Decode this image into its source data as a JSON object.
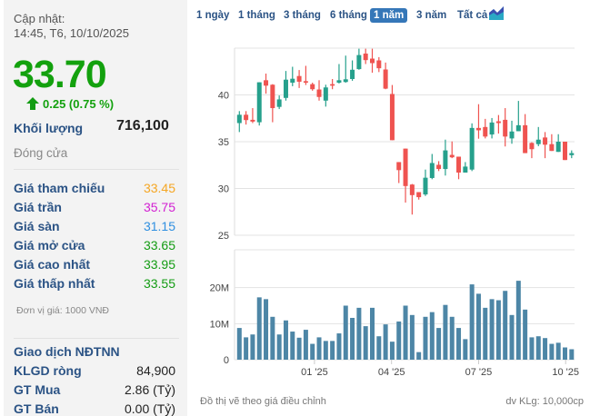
{
  "update": {
    "label": "Cập nhật:",
    "time": "14:45, T6, 10/10/2025"
  },
  "price": {
    "current": "33.70",
    "change": "0.25 (0.75 %)",
    "direction": "up"
  },
  "volume": {
    "label": "Khối lượng",
    "value": "716,100"
  },
  "status": "Đóng cửa",
  "stats": [
    {
      "label": "Giá tham chiếu",
      "value": "33.45",
      "color": "#f5a623"
    },
    {
      "label": "Giá trần",
      "value": "35.75",
      "color": "#d21fd2"
    },
    {
      "label": "Giá sàn",
      "value": "31.15",
      "color": "#2f8fe0"
    },
    {
      "label": "Giá mở cửa",
      "value": "33.65",
      "color": "#139c13"
    },
    {
      "label": "Giá cao nhất",
      "value": "33.95",
      "color": "#139c13"
    },
    {
      "label": "Giá thấp nhất",
      "value": "33.55",
      "color": "#139c13"
    }
  ],
  "unit_note": "Đơn vị giá: 1000 VNĐ",
  "foreign": {
    "title": "Giao dịch NĐTNN",
    "rows": [
      {
        "label": "KLGD ròng",
        "value": "84,900"
      },
      {
        "label": "GT Mua",
        "value": "2.86 (Tỷ)"
      },
      {
        "label": "GT Bán",
        "value": "0.00 (Tỷ)"
      }
    ]
  },
  "tabs": [
    {
      "label": "1 ngày"
    },
    {
      "label": "1 tháng"
    },
    {
      "label": "3 tháng"
    },
    {
      "label": "6 tháng"
    },
    {
      "label": "1 năm",
      "active": true
    },
    {
      "label": "3 năm"
    },
    {
      "label": "Tất cả"
    }
  ],
  "chart_icon": "area-chart-icon",
  "footer": {
    "left": "Đồ thị vẽ theo giá điều chỉnh",
    "right": "dv KLg: 10,000cp"
  },
  "colors": {
    "up": "#26a08c",
    "down": "#ef5350",
    "volume": "#4d86a6",
    "accent": "#3577b8"
  },
  "chart_data": {
    "type": "candlestick",
    "price_ylim": [
      25,
      45
    ],
    "price_ticks": [
      "25",
      "30",
      "35",
      "40"
    ],
    "price_tick_values": [
      25,
      30,
      35,
      40
    ],
    "volume_ylim": [
      0,
      30.5
    ],
    "volume_ticks": [
      "0",
      "10M",
      "20M"
    ],
    "volume_tick_values": [
      0,
      10,
      20
    ],
    "x_ticks": [
      {
        "label": "01 '25",
        "index": 11.3
      },
      {
        "label": "04 '25",
        "index": 22.9
      },
      {
        "label": "07 '25",
        "index": 36.0
      },
      {
        "label": "10 '25",
        "index": 49.1
      }
    ],
    "ohlc": [
      [
        36.99,
        38.27,
        36.03,
        37.88
      ],
      [
        37.88,
        38.27,
        36.83,
        37.31
      ],
      [
        37.34,
        38.59,
        36.99,
        37.15
      ],
      [
        37.08,
        41.35,
        36.73,
        41.35
      ],
      [
        41.57,
        42.28,
        40.13,
        40.99
      ],
      [
        41.09,
        41.15,
        37.08,
        38.59
      ],
      [
        38.72,
        39.94,
        38.49,
        39.52
      ],
      [
        39.68,
        42.56,
        39.39,
        41.63
      ],
      [
        41.31,
        43.01,
        40.93,
        41.73
      ],
      [
        42.02,
        42.66,
        40.74,
        41.41
      ],
      [
        41.47,
        43.11,
        41.06,
        41.31
      ],
      [
        41.15,
        41.31,
        40.45,
        40.61
      ],
      [
        40.58,
        41.57,
        39.39,
        39.78
      ],
      [
        39.39,
        41.09,
        38.75,
        40.8
      ],
      [
        41.15,
        41.7,
        40.61,
        40.99
      ],
      [
        41.31,
        43.3,
        41.22,
        41.57
      ],
      [
        41.38,
        44.2,
        41.31,
        41.67
      ],
      [
        41.7,
        43.69,
        41.51,
        42.69
      ],
      [
        42.76,
        44.94,
        42.69,
        44.26
      ],
      [
        44.42,
        44.94,
        43.3,
        43.72
      ],
      [
        43.88,
        44.94,
        42.37,
        43.4
      ],
      [
        43.69,
        44.04,
        42.44,
        42.85
      ],
      [
        42.72,
        43.46,
        40.61,
        40.67
      ],
      [
        40.1,
        41.06,
        35.16,
        35.16
      ],
      [
        32.82,
        32.82,
        30.58,
        31.96
      ],
      [
        34.26,
        34.26,
        28.49,
        30.26
      ],
      [
        30.42,
        30.48,
        27.21,
        29.29
      ],
      [
        29.61,
        29.61,
        28.81,
        29.07
      ],
      [
        29.36,
        32.02,
        29.2,
        31.15
      ],
      [
        31.12,
        33.69,
        30.99,
        32.72
      ],
      [
        32.53,
        32.92,
        31.86,
        32.08
      ],
      [
        32.08,
        35.22,
        31.38,
        34.07
      ],
      [
        33.59,
        35.03,
        33.24,
        33.33
      ],
      [
        33.4,
        33.4,
        30.99,
        31.7
      ],
      [
        31.7,
        32.82,
        31.7,
        32.34
      ],
      [
        32.02,
        36.96,
        31.86,
        36.47
      ],
      [
        36.47,
        39.01,
        35.32,
        36.22
      ],
      [
        36.57,
        37.44,
        35.35,
        35.55
      ],
      [
        35.77,
        37.53,
        35.35,
        37.05
      ],
      [
        37.18,
        37.85,
        35.87,
        36.99
      ],
      [
        37.34,
        38.59,
        34.49,
        35.55
      ],
      [
        35.35,
        37.24,
        34.78,
        36.09
      ],
      [
        36.12,
        39.36,
        36.12,
        36.76
      ],
      [
        36.76,
        37.95,
        33.78,
        33.78
      ],
      [
        34.87,
        34.94,
        33.24,
        34.2
      ],
      [
        34.74,
        36.57,
        34.52,
        35.22
      ],
      [
        35.45,
        36.03,
        33.24,
        34.68
      ],
      [
        34.74,
        35.8,
        34.01,
        34.01
      ],
      [
        33.91,
        35.8,
        33.91,
        35.0
      ],
      [
        35.0,
        35.0,
        33.04,
        33.04
      ],
      [
        33.56,
        34.07,
        33.24,
        33.78
      ]
    ],
    "volume_millions": [
      8.8,
      6.2,
      7.0,
      17.3,
      16.8,
      11.9,
      7.0,
      10.9,
      7.8,
      6.1,
      8.3,
      4.4,
      6.2,
      5.2,
      5.2,
      7.3,
      15.0,
      11.6,
      14.4,
      9.3,
      14.4,
      6.5,
      9.8,
      5.0,
      10.6,
      15.0,
      12.4,
      2.1,
      11.9,
      13.2,
      8.8,
      15.2,
      11.9,
      8.8,
      5.7,
      20.9,
      18.3,
      14.4,
      16.8,
      16.5,
      19.1,
      12.4,
      21.9,
      13.9,
      6.2,
      6.5,
      6.0,
      4.4,
      4.7,
      3.4,
      2.9
    ]
  }
}
